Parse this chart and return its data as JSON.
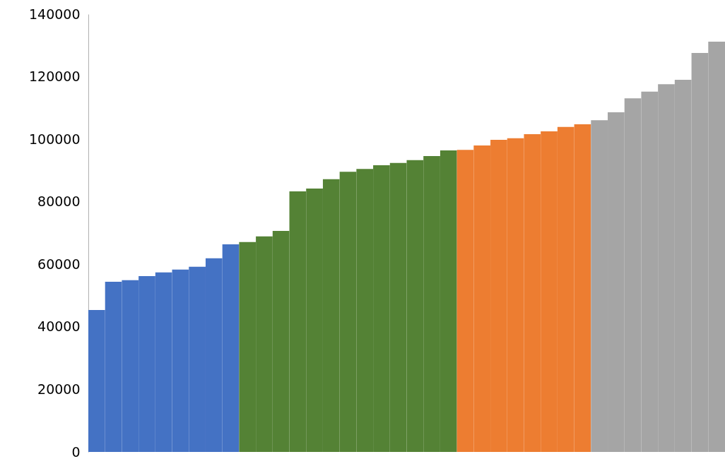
{
  "chart_data": {
    "type": "bar",
    "categories": [
      null,
      null,
      null,
      null,
      null,
      null,
      null,
      null,
      null,
      null,
      null,
      null,
      null,
      null,
      null,
      null,
      null,
      null,
      null,
      null,
      null,
      null,
      null,
      null,
      null,
      null,
      null,
      null,
      null,
      null,
      null,
      null,
      null,
      null,
      null,
      null,
      null,
      null
    ],
    "values": [
      45400,
      54400,
      54900,
      56200,
      57400,
      58300,
      59200,
      61900,
      66400,
      67100,
      68900,
      70700,
      83300,
      84200,
      87200,
      89600,
      90500,
      91700,
      92400,
      93300,
      94600,
      96400,
      96600,
      98000,
      99800,
      100300,
      101600,
      102500,
      103900,
      104800,
      106100,
      108600,
      113100,
      115200,
      117600,
      119000,
      127600,
      131200
    ],
    "colors": [
      "#4472c4",
      "#4472c4",
      "#4472c4",
      "#4472c4",
      "#4472c4",
      "#4472c4",
      "#4472c4",
      "#4472c4",
      "#4472c4",
      "#548235",
      "#548235",
      "#548235",
      "#548235",
      "#548235",
      "#548235",
      "#548235",
      "#548235",
      "#548235",
      "#548235",
      "#548235",
      "#548235",
      "#548235",
      "#ed7d31",
      "#ed7d31",
      "#ed7d31",
      "#ed7d31",
      "#ed7d31",
      "#ed7d31",
      "#ed7d31",
      "#ed7d31",
      "#a5a5a5",
      "#a5a5a5",
      "#a5a5a5",
      "#a5a5a5",
      "#a5a5a5",
      "#a5a5a5",
      "#a5a5a5",
      "#a5a5a5"
    ],
    "ylim": [
      0,
      140000
    ],
    "yticks": [
      0,
      20000,
      40000,
      60000,
      80000,
      100000,
      120000,
      140000
    ],
    "tick_labels": "y",
    "grid": false
  }
}
